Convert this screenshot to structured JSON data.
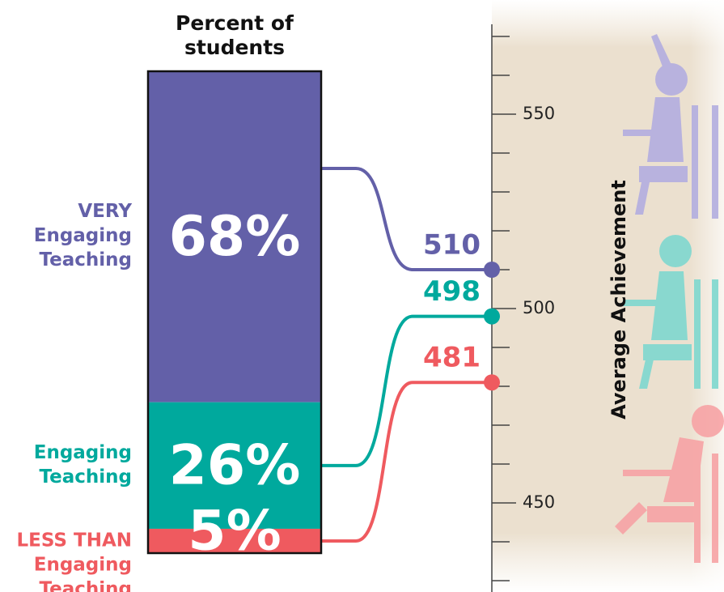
{
  "chart_data": {
    "type": "bar",
    "title": "Percent of students",
    "y_label": "Average Achievement",
    "categories": [
      [
        "VERY",
        "Engaging",
        "Teaching"
      ],
      [
        "Engaging",
        "Teaching"
      ],
      [
        "LESS THAN",
        "Engaging",
        "Teaching"
      ]
    ],
    "values": [
      68,
      26,
      5
    ],
    "value_labels": [
      "68%",
      "26%",
      "5%"
    ],
    "achievement": [
      510,
      498,
      481
    ],
    "colors": [
      "#6360a8",
      "#00a99d",
      "#ef5a5f"
    ],
    "ylim": [
      427,
      573
    ],
    "yticks": [
      450,
      500,
      550
    ],
    "minor_yticks": [
      430,
      440,
      460,
      470,
      480,
      490,
      510,
      520,
      530,
      540,
      560,
      570
    ]
  }
}
